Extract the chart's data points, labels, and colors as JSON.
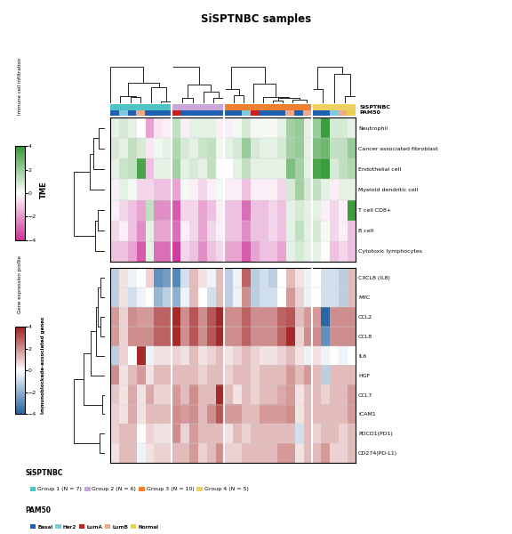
{
  "title": "SiSPTNBC samples",
  "n_samples": 28,
  "group_sizes": [
    7,
    6,
    10,
    5
  ],
  "group_labels": [
    "Group 1 (N = 7)",
    "Group 2 (N = 6)",
    "Group 3 (N = 10)",
    "Group 4 (N = 5)"
  ],
  "group_colors": [
    "#4EC4C4",
    "#C8A8D8",
    "#F08030",
    "#EED060"
  ],
  "pam50_colors_list": [
    {
      "name": "Basal",
      "color": "#2060B0"
    },
    {
      "name": "Her2",
      "color": "#80C8E0"
    },
    {
      "name": "LumA",
      "color": "#C82020"
    },
    {
      "name": "LumB",
      "color": "#F0A888"
    },
    {
      "name": "Normal",
      "color": "#E8D050"
    }
  ],
  "tme_rows": [
    "Cancer associated fibroblast",
    "Endothelial cell",
    "Neutrophil",
    "B cell",
    "Cytotoxic lymphocytes",
    "Myeloid dendritic cell",
    "T cell CD8+"
  ],
  "gene_rows": [
    "CCL7",
    "PDCD1(PD1)",
    "CD274(PD-L1)",
    "ICAM1",
    "IL6",
    "CXCL8 (IL8)",
    "HGF",
    "CCL2",
    "CCL8",
    "MYC"
  ],
  "tme_colormap_stops": [
    "#CC3399",
    "#FFFFFF",
    "#339933"
  ],
  "gene_colormap_stops": [
    "#2060A0",
    "#FFFFFF",
    "#A02020"
  ],
  "tme_vmin": -4,
  "tme_vmax": 4,
  "gene_vmin": -4,
  "gene_vmax": 4,
  "pam50_per_sample": [
    "Basal",
    "Her2",
    "Basal",
    "LumB",
    "Basal",
    "Basal",
    "Basal",
    "LumA",
    "Basal",
    "Basal",
    "Basal",
    "Basal",
    "Basal",
    "Basal",
    "Basal",
    "Her2",
    "LumA",
    "Basal",
    "Basal",
    "Basal",
    "LumB",
    "Basal",
    "LumB",
    "Basal",
    "Basal",
    "Her2",
    "LumB",
    "Normal"
  ],
  "tme_data": [
    [
      0.8,
      0.5,
      1.2,
      0.8,
      -0.5,
      0.3,
      0.5,
      1.5,
      0.8,
      0.5,
      1.0,
      1.2,
      0.3,
      0.5,
      0.8,
      2.0,
      0.8,
      0.5,
      0.5,
      0.8,
      1.8,
      2.0,
      0.5,
      2.5,
      2.8,
      1.2,
      1.2,
      2.0
    ],
    [
      0.5,
      1.0,
      1.2,
      3.5,
      -1.2,
      0.5,
      0.5,
      1.8,
      0.5,
      0.8,
      0.5,
      1.2,
      0.0,
      0.0,
      0.5,
      1.2,
      0.5,
      0.5,
      0.5,
      0.5,
      2.5,
      1.8,
      0.5,
      3.5,
      3.8,
      0.8,
      1.2,
      1.5
    ],
    [
      0.5,
      0.8,
      0.5,
      0.0,
      -1.8,
      -0.5,
      -0.3,
      1.2,
      -0.3,
      0.5,
      0.5,
      0.5,
      -0.3,
      -0.3,
      0.2,
      0.8,
      0.2,
      0.2,
      0.2,
      0.5,
      1.8,
      2.0,
      0.5,
      2.0,
      3.8,
      0.8,
      0.8,
      0.5
    ],
    [
      -0.8,
      -0.3,
      -1.2,
      -2.2,
      0.5,
      -1.8,
      -1.8,
      -2.8,
      -0.3,
      -0.8,
      -1.8,
      -0.8,
      -0.3,
      -1.2,
      -1.2,
      -2.2,
      -1.2,
      -1.2,
      -0.8,
      -1.2,
      0.5,
      1.2,
      0.5,
      0.8,
      0.2,
      -0.8,
      -0.3,
      -1.2
    ],
    [
      -1.2,
      -1.2,
      -1.8,
      -3.2,
      0.5,
      -2.8,
      -2.8,
      -3.8,
      -0.8,
      -1.2,
      -2.2,
      -1.2,
      -0.8,
      -1.8,
      -1.8,
      -3.2,
      -1.8,
      -1.2,
      -1.2,
      -1.8,
      0.5,
      0.8,
      0.5,
      0.5,
      0.0,
      -1.2,
      -0.8,
      -1.2
    ],
    [
      -0.3,
      0.5,
      0.2,
      -0.8,
      -0.8,
      -1.2,
      -1.2,
      -1.8,
      0.2,
      -0.3,
      -0.8,
      -0.3,
      0.2,
      -0.3,
      -0.3,
      -1.2,
      -0.3,
      -0.3,
      -0.3,
      -0.8,
      0.8,
      1.8,
      0.8,
      1.2,
      0.5,
      -0.3,
      0.5,
      0.5
    ],
    [
      -0.3,
      -0.8,
      -1.2,
      -1.8,
      1.2,
      -2.2,
      -2.2,
      -3.2,
      -0.8,
      -0.8,
      -1.8,
      -1.2,
      -0.3,
      -1.2,
      -1.2,
      -2.8,
      -1.2,
      -1.2,
      -0.8,
      -1.2,
      0.5,
      0.8,
      0.5,
      0.5,
      -0.3,
      -0.8,
      -0.3,
      3.8
    ]
  ],
  "gene_data": [
    [
      1.0,
      0.5,
      1.5,
      0.5,
      1.5,
      0.8,
      0.8,
      1.8,
      1.2,
      2.0,
      1.2,
      1.2,
      3.8,
      1.2,
      0.5,
      1.2,
      0.8,
      1.2,
      1.2,
      1.5,
      1.8,
      0.5,
      1.2,
      1.2,
      0.8,
      1.2,
      1.2,
      1.8
    ],
    [
      0.8,
      1.2,
      1.2,
      0.0,
      0.8,
      0.5,
      0.5,
      2.0,
      0.8,
      1.8,
      1.2,
      1.2,
      1.2,
      0.5,
      1.2,
      0.8,
      1.2,
      1.2,
      1.2,
      1.2,
      1.2,
      -0.8,
      1.2,
      0.8,
      1.2,
      1.2,
      0.8,
      1.2
    ],
    [
      0.5,
      1.2,
      1.2,
      -0.3,
      0.5,
      0.8,
      0.8,
      1.2,
      1.2,
      1.8,
      0.8,
      1.2,
      2.0,
      0.8,
      0.8,
      1.2,
      1.2,
      1.2,
      1.2,
      1.8,
      1.8,
      0.5,
      1.2,
      1.2,
      1.8,
      0.8,
      0.8,
      1.2
    ],
    [
      0.8,
      0.5,
      1.5,
      0.5,
      1.2,
      1.2,
      1.2,
      2.0,
      1.8,
      2.0,
      1.2,
      2.0,
      3.0,
      1.8,
      1.8,
      1.2,
      1.2,
      1.8,
      1.8,
      1.8,
      2.0,
      0.5,
      1.2,
      1.2,
      1.2,
      1.2,
      1.2,
      1.8
    ],
    [
      -1.2,
      0.8,
      0.0,
      3.8,
      -0.3,
      0.5,
      0.5,
      0.8,
      0.5,
      1.2,
      0.5,
      0.8,
      1.2,
      0.5,
      0.8,
      1.2,
      0.8,
      0.5,
      0.5,
      0.8,
      1.2,
      0.5,
      -0.3,
      0.5,
      -0.3,
      0.0,
      -0.3,
      0.0
    ],
    [
      -1.2,
      0.5,
      -0.3,
      0.0,
      0.8,
      -2.8,
      -2.5,
      -3.0,
      -0.8,
      1.2,
      0.5,
      -0.3,
      1.2,
      -1.2,
      -0.3,
      2.8,
      -1.2,
      -0.8,
      -1.2,
      0.0,
      1.2,
      0.5,
      -0.3,
      0.0,
      -0.8,
      -0.8,
      -1.2,
      1.2
    ],
    [
      2.0,
      0.5,
      1.2,
      1.8,
      0.5,
      1.2,
      1.2,
      1.2,
      1.2,
      1.2,
      0.8,
      1.2,
      1.2,
      0.8,
      1.2,
      1.2,
      0.8,
      1.2,
      1.2,
      1.2,
      1.8,
      1.2,
      1.8,
      1.2,
      -1.2,
      1.2,
      1.2,
      1.2
    ],
    [
      1.8,
      0.8,
      2.0,
      1.8,
      1.8,
      2.8,
      2.8,
      3.8,
      2.0,
      3.0,
      2.0,
      3.0,
      3.8,
      2.0,
      2.0,
      2.8,
      2.0,
      2.0,
      2.0,
      2.8,
      3.0,
      1.2,
      1.8,
      1.8,
      -3.8,
      2.0,
      2.0,
      2.0
    ],
    [
      1.8,
      0.8,
      2.0,
      2.0,
      2.0,
      2.8,
      2.8,
      3.8,
      2.0,
      3.0,
      2.0,
      3.0,
      3.8,
      2.0,
      2.0,
      2.8,
      2.0,
      2.0,
      2.0,
      2.8,
      3.8,
      0.8,
      2.0,
      2.0,
      -2.8,
      2.0,
      2.0,
      2.0
    ],
    [
      -1.2,
      0.5,
      -0.8,
      -0.3,
      0.0,
      -1.8,
      -1.2,
      -2.0,
      -0.3,
      1.2,
      0.0,
      -0.8,
      1.2,
      -1.2,
      -0.3,
      2.0,
      -1.2,
      -0.8,
      -0.8,
      0.0,
      1.8,
      0.8,
      -0.3,
      0.0,
      -0.8,
      -0.8,
      -1.2,
      1.2
    ]
  ]
}
